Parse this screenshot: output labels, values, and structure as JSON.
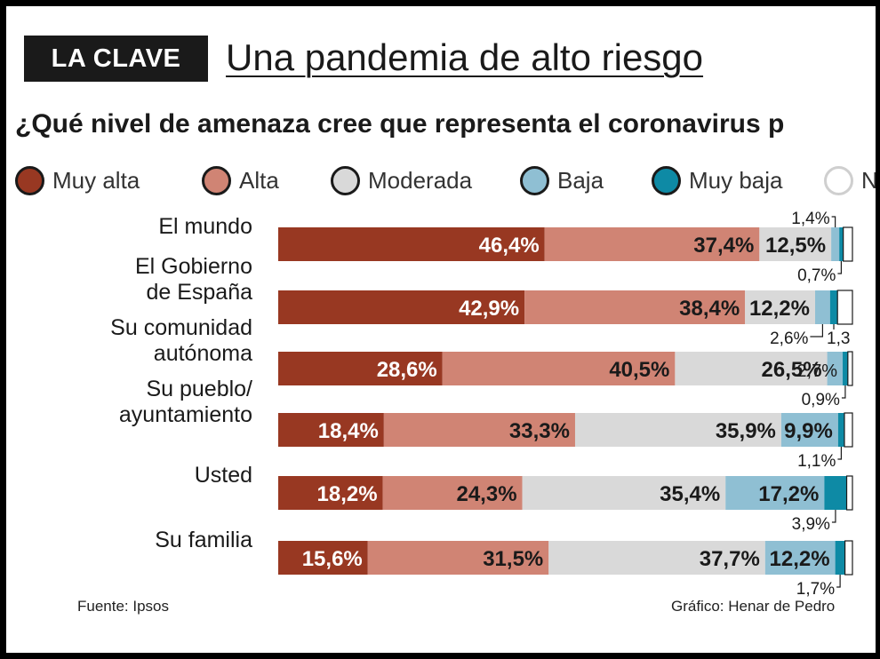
{
  "header": {
    "badge": "LA CLAVE",
    "title": "Una pandemia de alto riesgo",
    "question": "¿Qué nivel de amenaza cree que representa  el coronavirus p"
  },
  "footer": {
    "source": "Fuente: Ipsos",
    "credit": "Gráfico: Henar de Pedro"
  },
  "chart_data": {
    "type": "bar",
    "orientation": "horizontal",
    "stacked": true,
    "title": "¿Qué nivel de amenaza cree que representa  el coronavirus p",
    "legend": [
      "Muy alta",
      "Alta",
      "Moderada",
      "Baja",
      "Muy baja",
      "N"
    ],
    "colors": [
      "#983822",
      "#d08474",
      "#d9d9d9",
      "#8fbfd3",
      "#0e8aa5",
      "#ffffff"
    ],
    "categories": [
      [
        "El mundo"
      ],
      [
        "El Gobierno",
        "de España"
      ],
      [
        "Su comunidad",
        "autónoma"
      ],
      [
        "Su pueblo/",
        "ayuntamiento"
      ],
      [
        "Usted"
      ],
      [
        "Su familia"
      ]
    ],
    "series": [
      {
        "name": "Muy alta",
        "values": [
          46.4,
          42.9,
          28.6,
          18.4,
          18.2,
          15.6
        ]
      },
      {
        "name": "Alta",
        "values": [
          37.4,
          38.4,
          40.5,
          33.3,
          24.3,
          31.5
        ]
      },
      {
        "name": "Moderada",
        "values": [
          12.5,
          12.2,
          26.5,
          35.9,
          35.4,
          37.7
        ]
      },
      {
        "name": "Baja",
        "values": [
          1.4,
          2.6,
          2.7,
          9.9,
          17.2,
          12.2
        ]
      },
      {
        "name": "Muy baja",
        "values": [
          0.7,
          1.3,
          0.9,
          1.1,
          3.9,
          1.7
        ]
      },
      {
        "name": "N",
        "values": [
          1.6,
          2.6,
          0.8,
          1.4,
          1.0,
          1.3
        ]
      }
    ],
    "inside_labels": [
      [
        "46,4%",
        "37,4%",
        "12,5%",
        null,
        null,
        null
      ],
      [
        "42,9%",
        "38,4%",
        "12,2%",
        null,
        null,
        null
      ],
      [
        "28,6%",
        "40,5%",
        "26,5%",
        "2,7%",
        null,
        null
      ],
      [
        "18,4%",
        "33,3%",
        "35,9%",
        "9,9%",
        null,
        null
      ],
      [
        "18,2%",
        "24,3%",
        "35,4%",
        "17,2%",
        null,
        null
      ],
      [
        "15,6%",
        "31,5%",
        "37,7%",
        "12,2%",
        null,
        null
      ]
    ],
    "callouts": [
      {
        "row": 0,
        "series": 3,
        "text": "1,4%",
        "side": "above"
      },
      {
        "row": 0,
        "series": 4,
        "text": "0,7%",
        "side": "below"
      },
      {
        "row": 1,
        "series": 3,
        "text": "2,6%",
        "side": "below"
      },
      {
        "row": 1,
        "series": 4,
        "text": "1,3",
        "side": "below"
      },
      {
        "row": 2,
        "series": 4,
        "text": "0,9%",
        "side": "below"
      },
      {
        "row": 3,
        "series": 4,
        "text": "1,1%",
        "side": "below"
      },
      {
        "row": 4,
        "series": 4,
        "text": "3,9%",
        "side": "below"
      },
      {
        "row": 5,
        "series": 4,
        "text": "1,7%",
        "side": "below"
      }
    ],
    "xlim": [
      0,
      100
    ]
  }
}
